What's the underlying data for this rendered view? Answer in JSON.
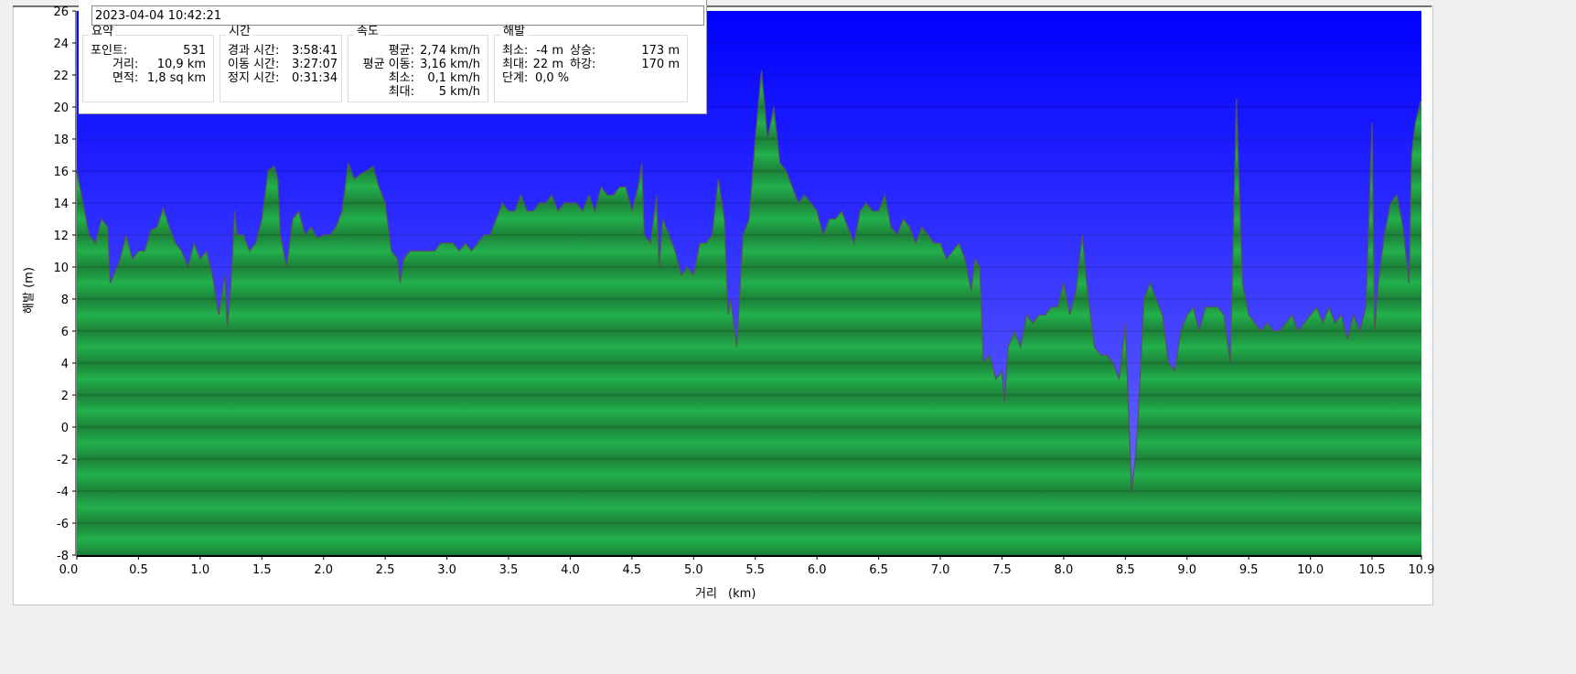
{
  "info": {
    "timestamp": "2023-04-04 10:42:21",
    "summary": {
      "title": "요약",
      "points_label": "포인트:",
      "points": "531",
      "distance_label": "거리:",
      "distance": "10,9 km",
      "area_label": "면적:",
      "area": "1,8 sq km"
    },
    "time": {
      "title": "시간",
      "elapsed_label": "경과 시간:",
      "elapsed": "3:58:41",
      "moving_label": "이동 시간:",
      "moving": "3:27:07",
      "stopped_label": "정지 시간:",
      "stopped": "0:31:34"
    },
    "speed": {
      "title": "속도",
      "avg_label": "평균:",
      "avg": "2,74 km/h",
      "avg_moving_label": "평균 이동:",
      "avg_moving": "3,16 km/h",
      "min_label": "최소:",
      "min": "0,1 km/h",
      "max_label": "최대:",
      "max": "5 km/h"
    },
    "elevation": {
      "title": "해발",
      "min_label": "최소:",
      "min": "-4 m",
      "ascent_label": "상승:",
      "ascent": "173 m",
      "max_label": "최대:",
      "max": "22 m",
      "descent_label": "하강:",
      "descent": "170 m",
      "grade_label": "단계:",
      "grade": "0,0 %"
    }
  },
  "chart_data": {
    "type": "area",
    "xlabel": "거리 (km)",
    "ylabel": "해발 (m)",
    "xlim": [
      0,
      10.9
    ],
    "ylim": [
      -8,
      26
    ],
    "xticks": [
      "0.0",
      "0.5",
      "1.0",
      "1.5",
      "2.0",
      "2.5",
      "3.0",
      "3.5",
      "4.0",
      "4.5",
      "5.0",
      "5.5",
      "6.0",
      "6.5",
      "7.0",
      "7.5",
      "8.0",
      "8.5",
      "9.0",
      "9.5",
      "10.0",
      "10.5",
      "10.9"
    ],
    "yticks": [
      26,
      24,
      22,
      20,
      18,
      16,
      14,
      12,
      10,
      8,
      6,
      4,
      2,
      0,
      -2,
      -4,
      -6,
      -8
    ],
    "grid": true,
    "colors": {
      "sky_top": "#0000ff",
      "sky_bottom": "#7373ff",
      "fill_dark": "#1c8038",
      "fill_light": "#22b14c",
      "line": "#555555"
    },
    "x": [
      0,
      0.05,
      0.1,
      0.15,
      0.2,
      0.25,
      0.27,
      0.3,
      0.35,
      0.4,
      0.45,
      0.5,
      0.55,
      0.6,
      0.65,
      0.7,
      0.75,
      0.8,
      0.85,
      0.9,
      0.95,
      1.0,
      1.05,
      1.1,
      1.15,
      1.2,
      1.22,
      1.25,
      1.28,
      1.3,
      1.35,
      1.4,
      1.45,
      1.5,
      1.55,
      1.6,
      1.63,
      1.65,
      1.7,
      1.75,
      1.8,
      1.85,
      1.9,
      1.95,
      2.0,
      2.05,
      2.1,
      2.15,
      2.2,
      2.25,
      2.3,
      2.35,
      2.4,
      2.45,
      2.5,
      2.55,
      2.6,
      2.62,
      2.65,
      2.7,
      2.75,
      2.8,
      2.85,
      2.9,
      2.95,
      3.0,
      3.05,
      3.1,
      3.15,
      3.2,
      3.25,
      3.3,
      3.35,
      3.4,
      3.45,
      3.5,
      3.55,
      3.6,
      3.65,
      3.7,
      3.75,
      3.8,
      3.85,
      3.9,
      3.95,
      4.0,
      4.05,
      4.1,
      4.15,
      4.2,
      4.25,
      4.3,
      4.35,
      4.4,
      4.45,
      4.5,
      4.55,
      4.58,
      4.6,
      4.65,
      4.7,
      4.72,
      4.75,
      4.8,
      4.85,
      4.9,
      4.95,
      5.0,
      5.05,
      5.1,
      5.15,
      5.2,
      5.25,
      5.28,
      5.3,
      5.35,
      5.4,
      5.45,
      5.5,
      5.55,
      5.6,
      5.65,
      5.7,
      5.75,
      5.8,
      5.85,
      5.9,
      5.95,
      6.0,
      6.05,
      6.1,
      6.15,
      6.2,
      6.25,
      6.3,
      6.35,
      6.4,
      6.45,
      6.5,
      6.55,
      6.6,
      6.65,
      6.7,
      6.75,
      6.8,
      6.85,
      6.9,
      6.95,
      7.0,
      7.05,
      7.1,
      7.15,
      7.2,
      7.25,
      7.28,
      7.32,
      7.35,
      7.4,
      7.45,
      7.5,
      7.52,
      7.55,
      7.6,
      7.65,
      7.7,
      7.75,
      7.8,
      7.85,
      7.9,
      7.95,
      8.0,
      8.05,
      8.1,
      8.15,
      8.2,
      8.25,
      8.3,
      8.35,
      8.4,
      8.45,
      8.5,
      8.55,
      8.58,
      8.6,
      8.65,
      8.7,
      8.75,
      8.8,
      8.85,
      8.9,
      8.95,
      9.0,
      9.05,
      9.1,
      9.15,
      9.2,
      9.25,
      9.3,
      9.35,
      9.4,
      9.45,
      9.5,
      9.55,
      9.6,
      9.65,
      9.7,
      9.75,
      9.8,
      9.85,
      9.9,
      9.95,
      10.0,
      10.05,
      10.1,
      10.15,
      10.2,
      10.25,
      10.3,
      10.35,
      10.4,
      10.45,
      10.5,
      10.52,
      10.55,
      10.6,
      10.65,
      10.7,
      10.75,
      10.8,
      10.82,
      10.85,
      10.9
    ],
    "y": [
      16,
      14,
      12,
      11.5,
      13,
      12.5,
      9,
      9.5,
      10.5,
      12,
      10.5,
      11,
      11,
      12.3,
      12.5,
      13.7,
      12.5,
      11.5,
      11,
      10,
      11.5,
      10.5,
      11,
      9.5,
      7,
      9.5,
      6.3,
      9,
      13.5,
      12,
      12,
      11,
      11.5,
      13,
      16,
      16.3,
      15.5,
      12,
      10,
      13,
      13.5,
      12,
      12.5,
      11.8,
      12,
      12,
      12.5,
      13.5,
      16.5,
      15.5,
      15.8,
      16,
      16.3,
      15,
      14,
      11,
      10.5,
      9,
      10.5,
      11,
      11,
      11,
      11,
      11,
      11.5,
      11.5,
      11.5,
      11,
      11.5,
      11,
      11.5,
      12,
      12,
      13,
      14,
      13.5,
      13.5,
      14.5,
      13.5,
      13.5,
      14,
      14,
      14.5,
      13.5,
      14,
      14,
      14,
      13.5,
      14.5,
      13.5,
      15,
      14.5,
      14.5,
      15,
      15,
      13.5,
      15,
      16.5,
      12,
      11.5,
      14.5,
      10,
      13,
      12,
      11,
      9.5,
      10,
      9.5,
      11.5,
      11.5,
      12,
      15.5,
      13,
      7,
      8,
      5,
      12,
      13,
      18,
      22.3,
      18,
      20,
      16.5,
      16,
      15,
      14,
      14.5,
      14,
      13.5,
      12,
      13,
      13,
      13.5,
      12.5,
      11.5,
      13.5,
      14,
      13.5,
      13.5,
      14.5,
      12.5,
      12,
      13,
      12.5,
      11.5,
      12.5,
      12,
      11.5,
      11.5,
      10.5,
      11,
      11.5,
      10.5,
      8.5,
      10.5,
      10,
      4,
      4.5,
      3,
      3.5,
      1.5,
      5,
      6,
      5,
      7,
      6.5,
      7,
      7,
      7.5,
      7.5,
      9,
      7,
      8.5,
      12,
      8,
      5,
      4.5,
      4.5,
      4,
      3,
      6.5,
      -4,
      -2,
      0,
      8,
      9,
      8,
      7,
      4,
      3.5,
      6,
      7,
      7.5,
      6,
      7.5,
      7.5,
      7.5,
      7,
      4,
      20.5,
      9,
      7,
      6.5,
      6,
      6.5,
      6,
      6,
      6.5,
      7,
      6,
      6.5,
      7,
      7.5,
      6.5,
      7.5,
      6.5,
      7,
      5.5,
      7,
      6,
      7.5,
      19,
      6,
      9,
      12,
      14,
      14.5,
      12.5,
      9,
      17,
      19,
      20.5
    ]
  }
}
